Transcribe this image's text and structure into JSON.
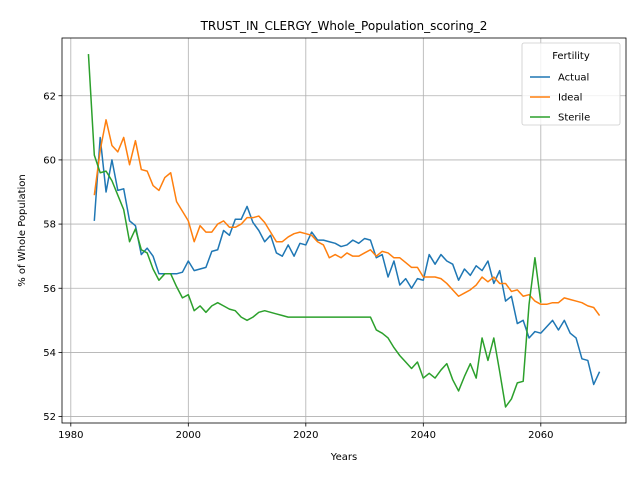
{
  "chart_data": {
    "type": "line",
    "title": "TRUST_IN_CLERGY_Whole_Population_scoring_2",
    "xlabel": "Years",
    "ylabel": "% of Whole Population",
    "xlim": [
      1978.5,
      2074.5
    ],
    "ylim": [
      51.8,
      63.8
    ],
    "xticks": [
      1980,
      2000,
      2020,
      2040,
      2060
    ],
    "yticks": [
      52,
      54,
      56,
      58,
      60,
      62
    ],
    "grid": true,
    "legend": {
      "title": "Fertility",
      "placement": "top-right"
    },
    "series": [
      {
        "name": "Actual",
        "color": "#1f77b4",
        "points": [
          [
            1984,
            58.1
          ],
          [
            1985,
            60.7
          ],
          [
            1986,
            59.0
          ],
          [
            1987,
            60.0
          ],
          [
            1988,
            59.05
          ],
          [
            1989,
            59.1
          ],
          [
            1990,
            58.1
          ],
          [
            1991,
            57.95
          ],
          [
            1992,
            57.05
          ],
          [
            1993,
            57.25
          ],
          [
            1994,
            57.0
          ],
          [
            1995,
            56.45
          ],
          [
            1996,
            56.45
          ],
          [
            1997,
            56.45
          ],
          [
            1998,
            56.45
          ],
          [
            1999,
            56.5
          ],
          [
            2000,
            56.85
          ],
          [
            2001,
            56.55
          ],
          [
            2002,
            56.6
          ],
          [
            2003,
            56.65
          ],
          [
            2004,
            57.15
          ],
          [
            2005,
            57.2
          ],
          [
            2006,
            57.8
          ],
          [
            2007,
            57.65
          ],
          [
            2008,
            58.15
          ],
          [
            2009,
            58.15
          ],
          [
            2010,
            58.55
          ],
          [
            2011,
            58.05
          ],
          [
            2012,
            57.8
          ],
          [
            2013,
            57.45
          ],
          [
            2014,
            57.65
          ],
          [
            2015,
            57.1
          ],
          [
            2016,
            57.0
          ],
          [
            2017,
            57.35
          ],
          [
            2018,
            57.0
          ],
          [
            2019,
            57.4
          ],
          [
            2020,
            57.35
          ],
          [
            2021,
            57.75
          ],
          [
            2022,
            57.5
          ],
          [
            2023,
            57.5
          ],
          [
            2024,
            57.45
          ],
          [
            2025,
            57.4
          ],
          [
            2026,
            57.3
          ],
          [
            2027,
            57.35
          ],
          [
            2028,
            57.5
          ],
          [
            2029,
            57.4
          ],
          [
            2030,
            57.55
          ],
          [
            2031,
            57.5
          ],
          [
            2032,
            56.95
          ],
          [
            2033,
            57.05
          ],
          [
            2034,
            56.35
          ],
          [
            2035,
            56.85
          ],
          [
            2036,
            56.1
          ],
          [
            2037,
            56.3
          ],
          [
            2038,
            56.0
          ],
          [
            2039,
            56.3
          ],
          [
            2040,
            56.25
          ],
          [
            2041,
            57.05
          ],
          [
            2042,
            56.75
          ],
          [
            2043,
            57.05
          ],
          [
            2044,
            56.85
          ],
          [
            2045,
            56.75
          ],
          [
            2046,
            56.25
          ],
          [
            2047,
            56.6
          ],
          [
            2048,
            56.4
          ],
          [
            2049,
            56.7
          ],
          [
            2050,
            56.55
          ],
          [
            2051,
            56.85
          ],
          [
            2052,
            56.15
          ],
          [
            2053,
            56.55
          ],
          [
            2054,
            55.6
          ],
          [
            2055,
            55.75
          ],
          [
            2056,
            54.9
          ],
          [
            2057,
            55.0
          ],
          [
            2058,
            54.45
          ],
          [
            2059,
            54.65
          ],
          [
            2060,
            54.6
          ],
          [
            2061,
            54.8
          ],
          [
            2062,
            55.0
          ],
          [
            2063,
            54.7
          ],
          [
            2064,
            55.0
          ],
          [
            2065,
            54.6
          ],
          [
            2066,
            54.45
          ],
          [
            2067,
            53.8
          ],
          [
            2068,
            53.75
          ],
          [
            2069,
            53.0
          ],
          [
            2070,
            53.4
          ]
        ]
      },
      {
        "name": "Ideal",
        "color": "#ff7f0e",
        "points": [
          [
            1984,
            58.9
          ],
          [
            1985,
            60.3
          ],
          [
            1986,
            61.25
          ],
          [
            1987,
            60.45
          ],
          [
            1988,
            60.25
          ],
          [
            1989,
            60.7
          ],
          [
            1990,
            59.85
          ],
          [
            1991,
            60.6
          ],
          [
            1992,
            59.7
          ],
          [
            1993,
            59.65
          ],
          [
            1994,
            59.2
          ],
          [
            1995,
            59.05
          ],
          [
            1996,
            59.45
          ],
          [
            1997,
            59.6
          ],
          [
            1998,
            58.7
          ],
          [
            1999,
            58.4
          ],
          [
            2000,
            58.1
          ],
          [
            2001,
            57.45
          ],
          [
            2002,
            57.95
          ],
          [
            2003,
            57.75
          ],
          [
            2004,
            57.75
          ],
          [
            2005,
            58.0
          ],
          [
            2006,
            58.1
          ],
          [
            2007,
            57.9
          ],
          [
            2008,
            57.9
          ],
          [
            2009,
            58.0
          ],
          [
            2010,
            58.2
          ],
          [
            2011,
            58.2
          ],
          [
            2012,
            58.25
          ],
          [
            2013,
            58.05
          ],
          [
            2014,
            57.75
          ],
          [
            2015,
            57.45
          ],
          [
            2016,
            57.45
          ],
          [
            2017,
            57.6
          ],
          [
            2018,
            57.7
          ],
          [
            2019,
            57.75
          ],
          [
            2020,
            57.7
          ],
          [
            2021,
            57.65
          ],
          [
            2022,
            57.45
          ],
          [
            2023,
            57.35
          ],
          [
            2024,
            56.95
          ],
          [
            2025,
            57.05
          ],
          [
            2026,
            56.95
          ],
          [
            2027,
            57.1
          ],
          [
            2028,
            57.0
          ],
          [
            2029,
            57.0
          ],
          [
            2030,
            57.1
          ],
          [
            2031,
            57.2
          ],
          [
            2032,
            57.0
          ],
          [
            2033,
            57.15
          ],
          [
            2034,
            57.1
          ],
          [
            2035,
            56.95
          ],
          [
            2036,
            56.95
          ],
          [
            2037,
            56.8
          ],
          [
            2038,
            56.65
          ],
          [
            2039,
            56.65
          ],
          [
            2040,
            56.35
          ],
          [
            2041,
            56.35
          ],
          [
            2042,
            56.35
          ],
          [
            2043,
            56.3
          ],
          [
            2044,
            56.15
          ],
          [
            2045,
            55.95
          ],
          [
            2046,
            55.75
          ],
          [
            2047,
            55.85
          ],
          [
            2048,
            55.95
          ],
          [
            2049,
            56.1
          ],
          [
            2050,
            56.35
          ],
          [
            2051,
            56.2
          ],
          [
            2052,
            56.35
          ],
          [
            2053,
            56.15
          ],
          [
            2054,
            56.15
          ],
          [
            2055,
            55.9
          ],
          [
            2056,
            55.95
          ],
          [
            2057,
            55.75
          ],
          [
            2058,
            55.8
          ],
          [
            2059,
            55.6
          ],
          [
            2060,
            55.5
          ],
          [
            2061,
            55.5
          ],
          [
            2062,
            55.55
          ],
          [
            2063,
            55.55
          ],
          [
            2064,
            55.7
          ],
          [
            2065,
            55.65
          ],
          [
            2066,
            55.6
          ],
          [
            2067,
            55.55
          ],
          [
            2068,
            55.45
          ],
          [
            2069,
            55.4
          ],
          [
            2070,
            55.15
          ]
        ]
      },
      {
        "name": "Sterile",
        "color": "#2ca02c",
        "points": [
          [
            1983,
            63.3
          ],
          [
            1984,
            60.15
          ],
          [
            1985,
            59.6
          ],
          [
            1986,
            59.65
          ],
          [
            1987,
            59.35
          ],
          [
            1988,
            58.9
          ],
          [
            1989,
            58.45
          ],
          [
            1990,
            57.45
          ],
          [
            1991,
            57.85
          ],
          [
            1992,
            57.2
          ],
          [
            1993,
            57.1
          ],
          [
            1994,
            56.6
          ],
          [
            1995,
            56.25
          ],
          [
            1996,
            56.45
          ],
          [
            1997,
            56.45
          ],
          [
            1998,
            56.05
          ],
          [
            1999,
            55.7
          ],
          [
            2000,
            55.8
          ],
          [
            2001,
            55.3
          ],
          [
            2002,
            55.45
          ],
          [
            2003,
            55.25
          ],
          [
            2004,
            55.45
          ],
          [
            2005,
            55.55
          ],
          [
            2006,
            55.45
          ],
          [
            2007,
            55.35
          ],
          [
            2008,
            55.3
          ],
          [
            2009,
            55.1
          ],
          [
            2010,
            55.0
          ],
          [
            2011,
            55.1
          ],
          [
            2012,
            55.25
          ],
          [
            2013,
            55.3
          ],
          [
            2014,
            55.25
          ],
          [
            2015,
            55.2
          ],
          [
            2016,
            55.15
          ],
          [
            2017,
            55.1
          ],
          [
            2018,
            55.1
          ],
          [
            2019,
            55.1
          ],
          [
            2020,
            55.1
          ],
          [
            2021,
            55.1
          ],
          [
            2022,
            55.1
          ],
          [
            2023,
            55.1
          ],
          [
            2024,
            55.1
          ],
          [
            2025,
            55.1
          ],
          [
            2026,
            55.1
          ],
          [
            2027,
            55.1
          ],
          [
            2028,
            55.1
          ],
          [
            2029,
            55.1
          ],
          [
            2030,
            55.1
          ],
          [
            2031,
            55.1
          ],
          [
            2032,
            54.7
          ],
          [
            2033,
            54.6
          ],
          [
            2034,
            54.45
          ],
          [
            2035,
            54.15
          ],
          [
            2036,
            53.9
          ],
          [
            2037,
            53.7
          ],
          [
            2038,
            53.5
          ],
          [
            2039,
            53.7
          ],
          [
            2040,
            53.2
          ],
          [
            2041,
            53.35
          ],
          [
            2042,
            53.2
          ],
          [
            2043,
            53.45
          ],
          [
            2044,
            53.65
          ],
          [
            2045,
            53.15
          ],
          [
            2046,
            52.8
          ],
          [
            2047,
            53.25
          ],
          [
            2048,
            53.65
          ],
          [
            2049,
            53.2
          ],
          [
            2050,
            54.45
          ],
          [
            2051,
            53.75
          ],
          [
            2052,
            54.45
          ],
          [
            2053,
            53.4
          ],
          [
            2054,
            52.3
          ],
          [
            2055,
            52.55
          ],
          [
            2056,
            53.05
          ],
          [
            2057,
            53.1
          ],
          [
            2058,
            55.5
          ],
          [
            2059,
            56.95
          ],
          [
            2060,
            55.55
          ]
        ]
      }
    ]
  }
}
